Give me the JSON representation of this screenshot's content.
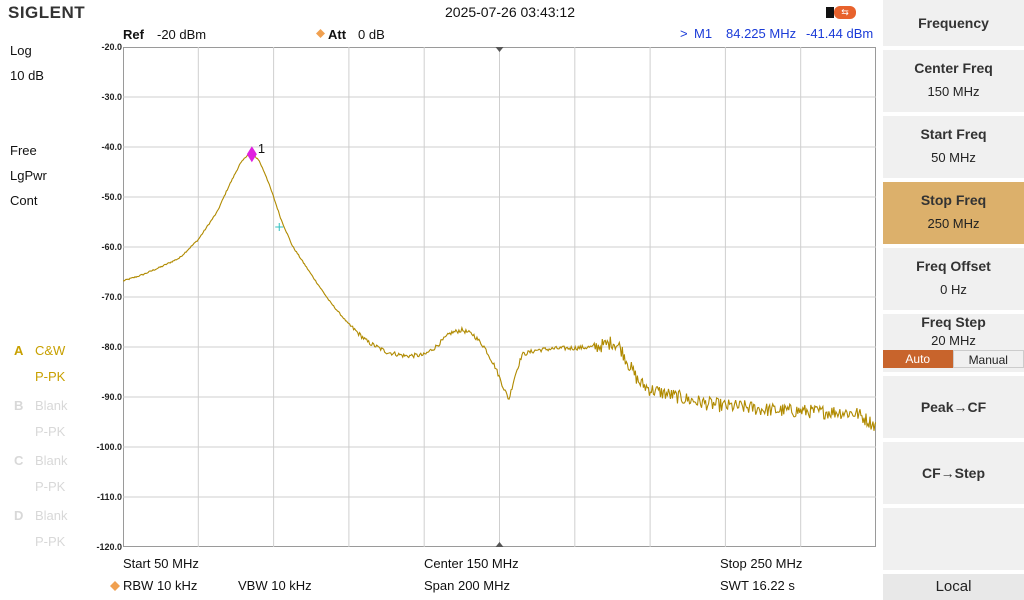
{
  "header": {
    "brand": "SIGLENT",
    "datetime": "2025-07-26 03:43:12",
    "usb_icon": "usb-icon",
    "ref_label": "Ref",
    "ref_value": "-20 dBm",
    "att_label": "Att",
    "att_value": "0 dB",
    "marker_readout": {
      "prefix": ">",
      "name": "M1",
      "freq": "84.225 MHz",
      "level": "-41.44 dBm"
    }
  },
  "left_panel": {
    "scale": "Log",
    "scale_div": "10 dB",
    "trigger": "Free",
    "detector": "LgPwr",
    "sweep": "Cont",
    "traces": [
      {
        "letter": "A",
        "mode": "C&W",
        "sub": "P-PK",
        "active": true
      },
      {
        "letter": "B",
        "mode": "Blank",
        "sub": "P-PK",
        "active": false
      },
      {
        "letter": "C",
        "mode": "Blank",
        "sub": "P-PK",
        "active": false
      },
      {
        "letter": "D",
        "mode": "Blank",
        "sub": "P-PK",
        "active": false
      }
    ]
  },
  "y_ticks": [
    "-20.0",
    "-30.0",
    "-40.0",
    "-50.0",
    "-60.0",
    "-70.0",
    "-80.0",
    "-90.0",
    "-100.0",
    "-110.0",
    "-120.0"
  ],
  "marker_label": "1",
  "footer": {
    "start": "Start  50 MHz",
    "center": "Center  150 MHz",
    "stop": "Stop  250 MHz",
    "rbw": "RBW  10 kHz",
    "vbw": "VBW  10 kHz",
    "span": "Span   200 MHz",
    "swt": "SWT  16.22 s"
  },
  "softkeys": {
    "menu_title": "Frequency",
    "center_freq": {
      "label": "Center Freq",
      "value": "150 MHz"
    },
    "start_freq": {
      "label": "Start Freq",
      "value": "50 MHz"
    },
    "stop_freq": {
      "label": "Stop Freq",
      "value": "250 MHz"
    },
    "freq_offset": {
      "label": "Freq Offset",
      "value": "0 Hz"
    },
    "freq_step": {
      "label": "Freq Step",
      "value": "20 MHz",
      "auto": "Auto",
      "manual": "Manual"
    },
    "peak_cf": "Peak→CF",
    "cf_step": "CF→Step",
    "local": "Local"
  },
  "colors": {
    "trace": "#b08a00",
    "marker": "#e020e0",
    "cursor": "#30c0c0",
    "selected_key": "#dcb06b",
    "auto_on": "#c8642c"
  },
  "chart_data": {
    "type": "line",
    "x_unit": "MHz",
    "y_unit": "dBm",
    "xlim": [
      50,
      250
    ],
    "ylim": [
      -120,
      -20
    ],
    "grid": true,
    "series": [
      {
        "points": [
          [
            50,
            -66.8
          ],
          [
            55,
            -65.6
          ],
          [
            60,
            -64.0
          ],
          [
            65,
            -62.2
          ],
          [
            70,
            -58.5
          ],
          [
            75,
            -53.0
          ],
          [
            78,
            -48.0
          ],
          [
            81,
            -43.5
          ],
          [
            83,
            -41.6
          ],
          [
            84.2,
            -41.4
          ],
          [
            86,
            -42.5
          ],
          [
            88,
            -45.8
          ],
          [
            90,
            -50.0
          ],
          [
            92,
            -54.5
          ],
          [
            95,
            -59.8
          ],
          [
            100,
            -65.5
          ],
          [
            105,
            -71.0
          ],
          [
            110,
            -75.5
          ],
          [
            115,
            -79.0
          ],
          [
            120,
            -81.0
          ],
          [
            125,
            -81.8
          ],
          [
            130,
            -81.6
          ],
          [
            133,
            -80.0
          ],
          [
            137,
            -77.2
          ],
          [
            140,
            -76.6
          ],
          [
            143,
            -77.5
          ],
          [
            146,
            -80.0
          ],
          [
            149,
            -84.2
          ],
          [
            151,
            -88.0
          ],
          [
            152.5,
            -90.5
          ],
          [
            154,
            -86.0
          ],
          [
            156,
            -81.5
          ],
          [
            160,
            -80.6
          ],
          [
            165,
            -80.3
          ],
          [
            170,
            -80.2
          ],
          [
            175,
            -80.0
          ],
          [
            178,
            -79.6
          ],
          [
            180,
            -79.0
          ],
          [
            182,
            -80.0
          ],
          [
            184,
            -83.0
          ],
          [
            187,
            -87.0
          ],
          [
            190,
            -88.5
          ],
          [
            195,
            -89.5
          ],
          [
            200,
            -90.5
          ],
          [
            205,
            -91.3
          ],
          [
            210,
            -91.8
          ],
          [
            215,
            -92.0
          ],
          [
            220,
            -92.5
          ],
          [
            225,
            -92.7
          ],
          [
            230,
            -92.8
          ],
          [
            235,
            -93.0
          ],
          [
            240,
            -93.0
          ],
          [
            245,
            -93.3
          ],
          [
            250,
            -95.8
          ]
        ],
        "noise_from_mhz": 175
      }
    ],
    "marker": {
      "name": "1",
      "x": 84.225,
      "y": -41.44
    },
    "cursor": {
      "x": 91.5,
      "y": -56.0
    }
  }
}
